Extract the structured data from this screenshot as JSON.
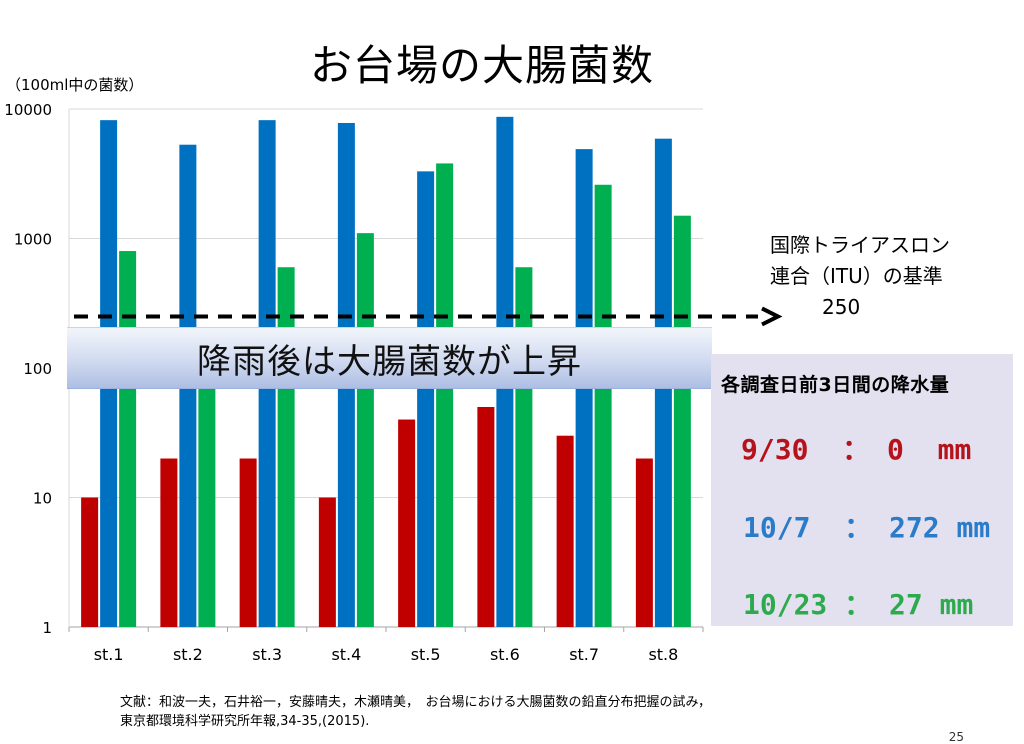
{
  "title": "お台場の大腸菌数",
  "unit_label": "（100ml中の菌数）",
  "banner": "降雨後は大腸菌数が上昇",
  "annotation": {
    "line1": "国際トライアスロン",
    "line2": "連合（ITU）の基準",
    "value": "250"
  },
  "rain_box": {
    "title": "各調査日前3日間の降水量",
    "rows": [
      {
        "date": "9/30",
        "sep": "：",
        "amount": "0",
        "unit": "mm"
      },
      {
        "date": "10/7",
        "sep": "：",
        "amount": "272",
        "unit": "mm"
      },
      {
        "date": "10/23",
        "sep": "：",
        "amount": "27",
        "unit": "mm"
      }
    ]
  },
  "reference": {
    "line1": "文献：和波一夫，石井裕一，安藤晴夫，木瀬晴美，　お台場における大腸菌数の鉛直分布把握の試み，",
    "line2": "東京都環境科学研究所年報,34-35,(2015)."
  },
  "page_number": "25",
  "colors": {
    "red": "#c00000",
    "blue": "#0070c0",
    "green": "#00b050",
    "grid": "#d9d9d9"
  },
  "chart_data": {
    "type": "bar",
    "yscale": "log",
    "ylim": [
      1,
      10000
    ],
    "yticks": [
      "1",
      "10",
      "100",
      "1000",
      "10000"
    ],
    "categories": [
      "st.1",
      "st.2",
      "st.3",
      "st.4",
      "st.5",
      "st.6",
      "st.7",
      "st.8"
    ],
    "series": [
      {
        "color": "#c00000",
        "values": [
          10,
          20,
          20,
          10,
          40,
          50,
          30,
          20
        ]
      },
      {
        "color": "#0070c0",
        "values": [
          8200,
          5300,
          8200,
          7800,
          3300,
          8700,
          4900,
          5900
        ]
      },
      {
        "color": "#00b050",
        "values": [
          800,
          90,
          600,
          1100,
          3800,
          600,
          2600,
          1500
        ]
      }
    ],
    "threshold": 250,
    "grid": true
  }
}
